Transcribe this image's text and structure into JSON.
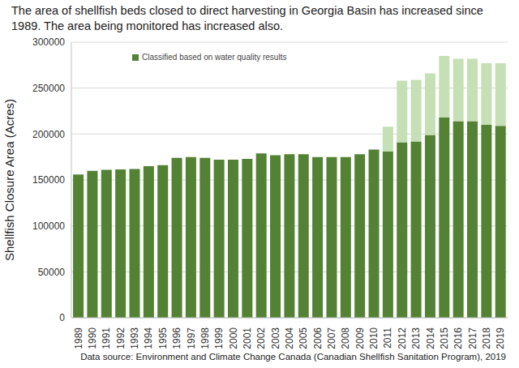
{
  "chart_data": {
    "type": "bar",
    "title": "The area of shellfish beds closed to direct harvesting in Georgia Basin has increased since 1989. The area being monitored has increased also.",
    "source": "Data source: Environment and Climate Change Canada (Canadian Shellfish Sanitation Program), 2019",
    "y_label": "Shellfish Closure Area (Acres)",
    "categories": [
      "1989",
      "1990",
      "1991",
      "1992",
      "1993",
      "1994",
      "1995",
      "1996",
      "1997",
      "1998",
      "1999",
      "2000",
      "2001",
      "2002",
      "2003",
      "2004",
      "2005",
      "2006",
      "2007",
      "2008",
      "2009",
      "2010",
      "2011",
      "2012",
      "2013",
      "2014",
      "2015",
      "2016",
      "2017",
      "2018",
      "2019"
    ],
    "series": [
      {
        "name": "Classified based on water quality results",
        "color": "#548235",
        "values": [
          156000,
          160000,
          161000,
          161500,
          162000,
          165000,
          166000,
          174000,
          175000,
          174000,
          172000,
          172000,
          173000,
          179000,
          177000,
          178000,
          178000,
          175000,
          175000,
          175000,
          178000,
          183000,
          181000,
          191000,
          192000,
          199000,
          218000,
          214000,
          214000,
          210000,
          209000
        ]
      },
      {
        "color": "#c5e0b4",
        "values": [
          0,
          0,
          0,
          0,
          0,
          0,
          0,
          0,
          0,
          0,
          0,
          0,
          0,
          0,
          0,
          0,
          0,
          0,
          0,
          0,
          0,
          0,
          27000,
          67000,
          67000,
          67000,
          67000,
          68000,
          68000,
          67000,
          68000
        ]
      }
    ],
    "ylim": [
      0,
      300000
    ],
    "yticks": [
      0,
      50000,
      100000,
      150000,
      200000,
      250000,
      300000
    ],
    "stacked": true,
    "grid": true
  }
}
